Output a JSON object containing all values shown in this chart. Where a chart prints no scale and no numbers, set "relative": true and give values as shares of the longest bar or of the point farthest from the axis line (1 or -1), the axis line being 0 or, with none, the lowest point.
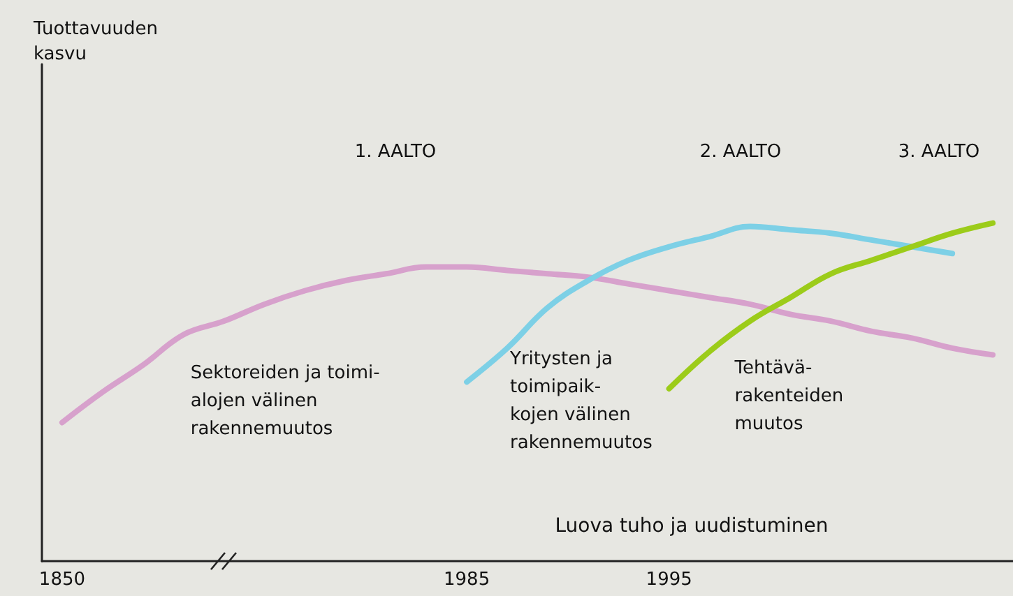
{
  "chart_data": {
    "type": "line",
    "relative": true,
    "marker": "none",
    "legend": false,
    "categories": [
      "1850",
      null,
      null,
      null,
      null,
      null,
      null,
      null,
      null,
      null,
      "1985",
      null,
      null,
      null,
      null,
      "1995",
      null,
      null,
      null,
      null,
      null,
      null,
      null,
      null
    ],
    "series": [
      {
        "name": "Sektoreiden ja toimi-\nalojen välinen\nrakennemuutos",
        "color": "#d7a1cc",
        "values": [
          0.41,
          0.5,
          0.58,
          0.67,
          0.71,
          0.76,
          0.8,
          0.83,
          0.85,
          0.87,
          0.87,
          0.86,
          0.85,
          0.84,
          0.82,
          0.8,
          0.78,
          0.76,
          0.73,
          0.71,
          0.68,
          0.66,
          0.63,
          0.61
        ]
      },
      {
        "name": "Yritysten ja\ntoimipaik-\nkojen välinen\nrakennemuutos",
        "color": "#7dd0e6",
        "values": [
          null,
          null,
          null,
          null,
          null,
          null,
          null,
          null,
          null,
          null,
          0.53,
          0.63,
          0.75,
          0.83,
          0.89,
          0.93,
          0.96,
          0.99,
          0.98,
          0.97,
          0.95,
          0.93,
          0.91,
          null
        ]
      },
      {
        "name": "Tehtävä-\nrakenteiden\nmuutos",
        "color": "#9ccc1a",
        "values": [
          null,
          null,
          null,
          null,
          null,
          null,
          null,
          null,
          null,
          null,
          null,
          null,
          null,
          null,
          null,
          0.51,
          0.62,
          0.71,
          0.78,
          0.85,
          0.89,
          0.93,
          0.97,
          1
        ]
      }
    ],
    "annotations": [
      "Tuottavuuden\nkasvu",
      "1. AALTO",
      "2. AALTO",
      "3. AALTO",
      "Luova tuho ja uudistuminen"
    ]
  }
}
